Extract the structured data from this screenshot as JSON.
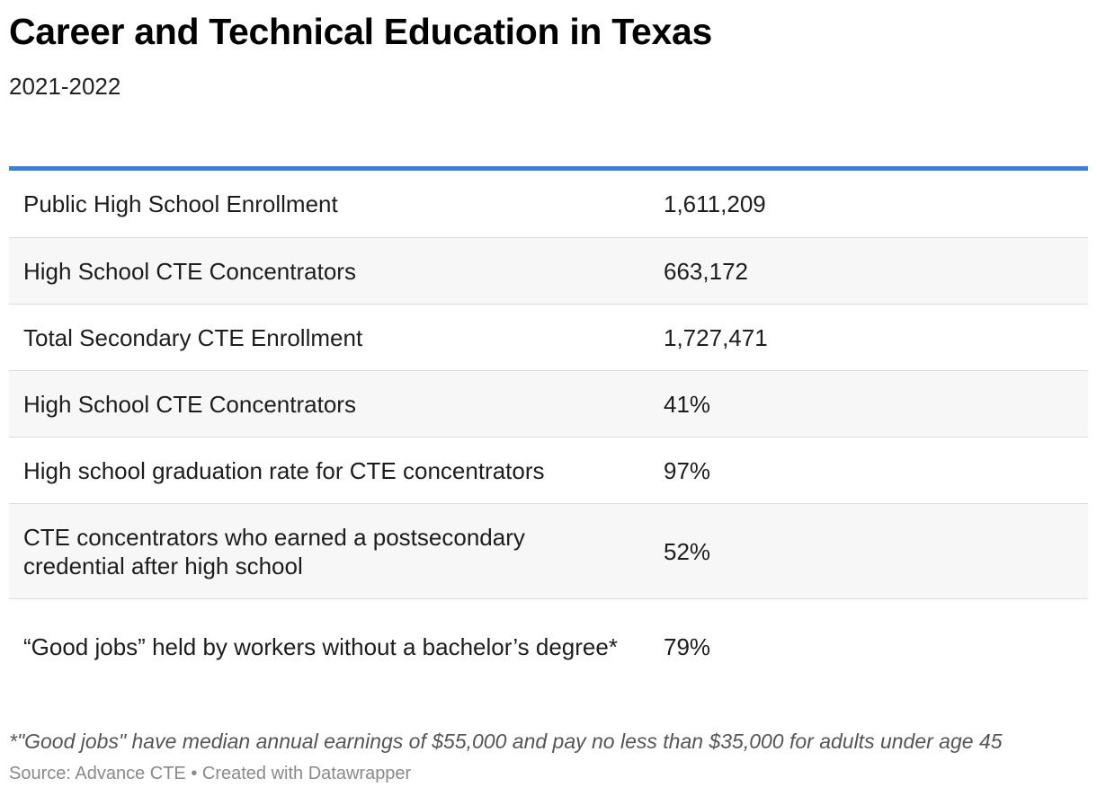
{
  "chart_data": {
    "type": "table",
    "title": "Career and Technical Education in Texas",
    "subtitle": "2021-2022",
    "rows": [
      {
        "label": "Public High School Enrollment",
        "value": "1,611,209"
      },
      {
        "label": "High School CTE Concentrators",
        "value": "663,172"
      },
      {
        "label": "Total Secondary CTE Enrollment",
        "value": "1,727,471"
      },
      {
        "label": "High School CTE Concentrators",
        "value": "41%"
      },
      {
        "label": "High school graduation rate for CTE concentrators",
        "value": "97%"
      },
      {
        "label": "CTE concentrators who earned a postsecondary credential after high school",
        "value": "52%"
      },
      {
        "label": "“Good jobs” held by workers without a bachelor’s degree*",
        "value": "79%"
      }
    ],
    "footnote": "*\"Good jobs\" have median annual earnings of $55,000 and pay no less than $35,000 for adults under age 45",
    "source": "Source: Advance CTE • Created with Datawrapper"
  },
  "colors": {
    "accent_rule": "#3b80d6",
    "alt_row": "#f7f7f7",
    "row_divider": "#dcdcdc"
  }
}
